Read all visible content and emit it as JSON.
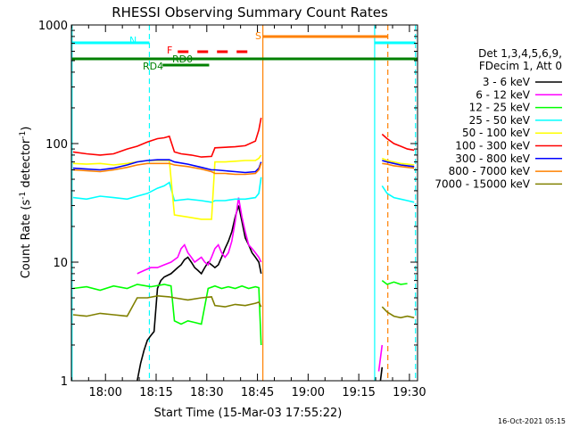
{
  "chart_data": {
    "type": "line",
    "title": "RHESSI Observing Summary Count Rates",
    "xlabel": "Start Time (15-Mar-03 17:55:22)",
    "ylabel_main": "Count Rate (s",
    "ylabel_sup1": "-1",
    "ylabel_mid": " detector",
    "ylabel_sup2": "-1",
    "ylabel_end": ")",
    "yscale": "log",
    "ylim": [
      1,
      1000
    ],
    "xlim_min": [
      -5.5,
      97
    ],
    "x_ticks": [
      {
        "v": 4.6,
        "label": "18:00"
      },
      {
        "v": 19.6,
        "label": "18:15"
      },
      {
        "v": 34.6,
        "label": "18:30"
      },
      {
        "v": 49.6,
        "label": "18:45"
      },
      {
        "v": 64.6,
        "label": "19:00"
      },
      {
        "v": 79.6,
        "label": "19:15"
      },
      {
        "v": 94.6,
        "label": "19:30"
      }
    ],
    "y_ticks": [
      {
        "v": 1,
        "label": "1"
      },
      {
        "v": 10,
        "label": "10"
      },
      {
        "v": 100,
        "label": "100"
      },
      {
        "v": 1000,
        "label": "1000"
      }
    ],
    "legend_header": [
      "Det 1,3,4,5,6,9,",
      "FDecim 1, Att 0"
    ],
    "legend_position": "right",
    "timestamp": "16-Oct-2021 05:15",
    "series": [
      {
        "name": "3 - 6 keV",
        "color": "#000000",
        "x": [
          14,
          15,
          16,
          17,
          18,
          19,
          20,
          21,
          22,
          24,
          26,
          27,
          28,
          29,
          30,
          31,
          32,
          33,
          34,
          35,
          36,
          37,
          38,
          39,
          40,
          41,
          42,
          43,
          44,
          45,
          46,
          47,
          48,
          49,
          50,
          50.7
        ],
        "y": [
          1,
          1.4,
          1.8,
          2.2,
          2.4,
          2.6,
          6,
          7,
          7.5,
          8,
          9,
          9.5,
          10.5,
          11,
          10,
          9,
          8.5,
          8,
          9,
          10,
          9.5,
          9,
          9.5,
          11,
          13,
          15,
          18,
          24,
          30,
          22,
          16,
          14,
          12,
          11,
          10,
          8
        ],
        "x2": [
          86,
          86.5
        ],
        "y2": [
          1,
          1.3
        ]
      },
      {
        "name": "6 - 12 keV",
        "color": "#ff00ff",
        "x": [
          14,
          16,
          18,
          20,
          22,
          24,
          26,
          27,
          28,
          29,
          30,
          31,
          32,
          33,
          34,
          35,
          36,
          37,
          38,
          39,
          40,
          41,
          42,
          43,
          44,
          45,
          46,
          47,
          48,
          49,
          50,
          50.7
        ],
        "y": [
          8,
          8.5,
          9,
          9,
          9.5,
          10,
          11,
          13,
          14,
          12,
          11,
          10,
          10.5,
          11,
          10,
          9.5,
          11,
          13,
          14,
          12,
          11,
          12,
          15,
          22,
          35,
          24,
          18,
          14,
          13,
          12,
          11,
          10
        ],
        "x2": [
          85.5,
          86.5
        ],
        "y2": [
          1.2,
          2
        ]
      },
      {
        "name": "12 - 25 keV",
        "color": "#00ff00",
        "x": [
          -5,
          -1,
          3,
          7,
          11,
          14,
          18,
          22,
          24,
          25,
          27,
          29,
          31,
          33,
          35,
          37,
          39,
          41,
          43,
          45,
          47,
          49,
          50,
          50.7
        ],
        "y": [
          6,
          6.2,
          5.8,
          6.3,
          6,
          6.5,
          6.2,
          6.5,
          6.3,
          3.2,
          3,
          3.2,
          3.1,
          3,
          6,
          6.3,
          6,
          6.2,
          6,
          6.3,
          6,
          6.2,
          6.1,
          2
        ],
        "x2": [
          86.5,
          88,
          90,
          92,
          94
        ],
        "y2": [
          7,
          6.5,
          6.8,
          6.5,
          6.6
        ]
      },
      {
        "name": "25 - 50 keV",
        "color": "#00ffff",
        "x": [
          -5,
          -1,
          3,
          7,
          11,
          14,
          17,
          20,
          22,
          23.5,
          25,
          29,
          33,
          36,
          37,
          40,
          43,
          46,
          49,
          50,
          50.7
        ],
        "y": [
          35,
          34,
          36,
          35,
          34,
          36,
          38,
          42,
          44,
          47,
          33,
          34,
          33,
          32,
          33,
          33,
          34,
          34,
          35,
          38,
          52
        ],
        "x2": [
          86.5,
          88,
          90,
          92,
          94,
          96
        ],
        "y2": [
          44,
          38,
          35,
          34,
          33,
          32
        ]
      },
      {
        "name": "50 - 100 keV",
        "color": "#ffff00",
        "x": [
          -5,
          -1,
          3,
          7,
          11,
          14,
          17,
          20,
          23.5,
          25,
          29,
          33,
          36,
          37,
          40,
          43,
          46,
          49,
          50,
          50.7
        ],
        "y": [
          68,
          67,
          68,
          66,
          68,
          70,
          72,
          72,
          72,
          25,
          24,
          23,
          23,
          70,
          70,
          71,
          72,
          72,
          75,
          80
        ],
        "x2": [
          86.5,
          88,
          90,
          92,
          94,
          96
        ],
        "y2": [
          75,
          72,
          70,
          68,
          67,
          66
        ]
      },
      {
        "name": "100 - 300 keV",
        "color": "#ff0000",
        "x": [
          -5,
          -1,
          3,
          7,
          11,
          14,
          17,
          20,
          22,
          23.5,
          25,
          27,
          30,
          33,
          36,
          37,
          40,
          43,
          46,
          49,
          50,
          50.7
        ],
        "y": [
          85,
          82,
          80,
          82,
          90,
          95,
          103,
          110,
          112,
          115,
          85,
          82,
          80,
          77,
          78,
          92,
          93,
          94,
          96,
          105,
          130,
          165
        ],
        "x2": [
          86.5,
          88,
          90,
          92,
          94,
          96
        ],
        "y2": [
          120,
          110,
          100,
          95,
          90,
          88
        ]
      },
      {
        "name": "300 - 800 keV",
        "color": "#0000ff",
        "x": [
          -5,
          -1,
          3,
          7,
          11,
          14,
          17,
          20,
          23.5,
          25,
          29,
          33,
          36,
          37,
          40,
          43,
          46,
          49,
          50,
          50.7
        ],
        "y": [
          62,
          61,
          60,
          62,
          66,
          70,
          72,
          73,
          73,
          70,
          67,
          63,
          60,
          60,
          59,
          58,
          57,
          58,
          62,
          70
        ],
        "x2": [
          86.5,
          88,
          90,
          92,
          94,
          96
        ],
        "y2": [
          72,
          70,
          68,
          66,
          65,
          64
        ]
      },
      {
        "name": "800 - 7000 keV",
        "color": "#ff8000",
        "x": [
          -5,
          -1,
          3,
          7,
          11,
          14,
          17,
          20,
          23.5,
          25,
          29,
          33,
          36,
          37,
          40,
          43,
          46,
          49,
          50,
          50.7
        ],
        "y": [
          60,
          59,
          58,
          60,
          63,
          66,
          68,
          68,
          68,
          66,
          64,
          61,
          58,
          56,
          56,
          55,
          55,
          56,
          60,
          68
        ],
        "x2": [
          86.5,
          88,
          90,
          92,
          94,
          96
        ],
        "y2": [
          68,
          67,
          65,
          64,
          63,
          62
        ]
      },
      {
        "name": "7000 - 15000 keV",
        "color": "#808000",
        "x": [
          -5,
          -1,
          3,
          7,
          11,
          14,
          17,
          20,
          23.5,
          25,
          29,
          33,
          36,
          37,
          40,
          43,
          46,
          49,
          50,
          50.7
        ],
        "y": [
          3.6,
          3.5,
          3.7,
          3.6,
          3.5,
          5,
          5,
          5.2,
          5.1,
          5,
          4.8,
          5,
          5.1,
          4.3,
          4.2,
          4.4,
          4.3,
          4.5,
          4.6,
          4.2
        ],
        "x2": [
          86.5,
          88,
          90,
          92,
          94,
          96
        ],
        "y2": [
          4.2,
          3.8,
          3.5,
          3.4,
          3.5,
          3.4
        ]
      }
    ],
    "annotations": {
      "night_label": "N",
      "saa_label": "S",
      "flare_label": "F",
      "rd0_label": "RD0",
      "rd4_label": "RD4"
    },
    "colors": {
      "night": "#00ffff",
      "saa": "#ff8000",
      "flare": "#ff0000",
      "decim": "#008000",
      "axis": "#000000"
    }
  }
}
